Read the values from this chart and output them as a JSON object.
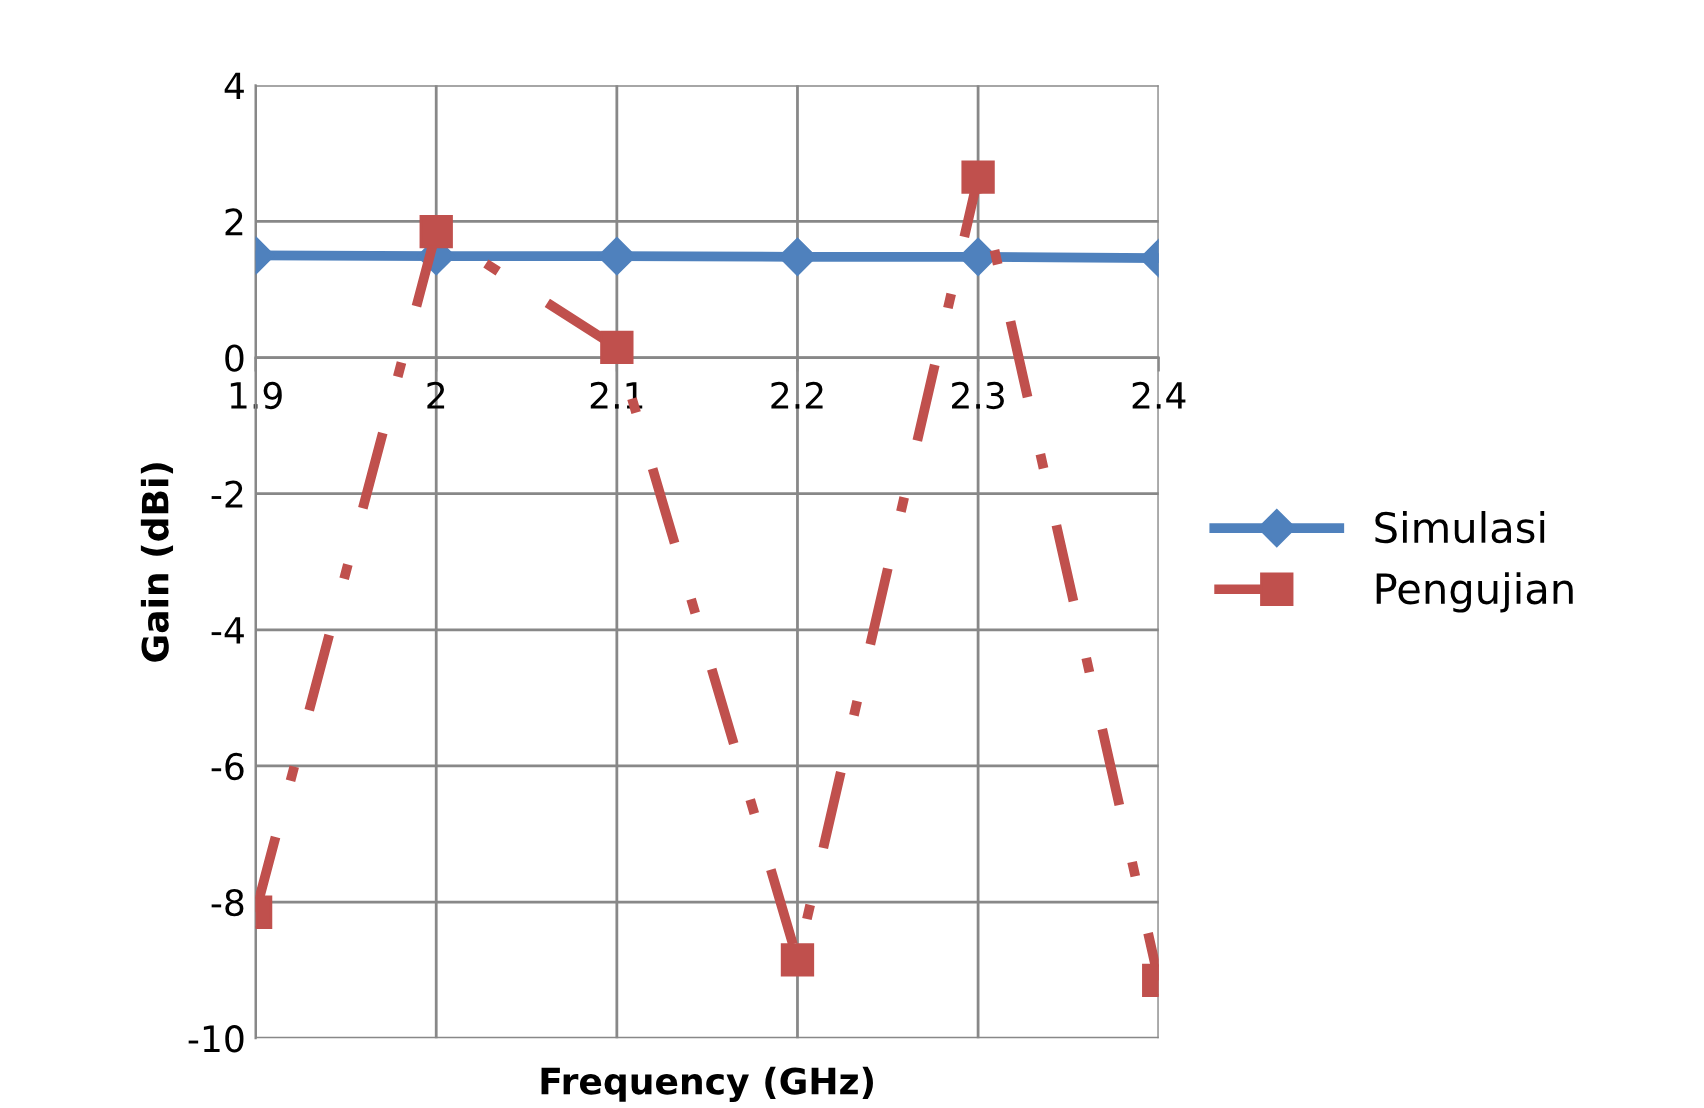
{
  "chart_data": {
    "type": "line",
    "xlabel": "Frequency (GHz)",
    "ylabel": "Gain (dBi)",
    "x": [
      1.9,
      2.0,
      2.1,
      2.2,
      2.3,
      2.4
    ],
    "xlim": [
      1.9,
      2.4
    ],
    "xticks": [
      {
        "value": 1.9,
        "label": "1.9"
      },
      {
        "value": 2.0,
        "label": "2"
      },
      {
        "value": 2.1,
        "label": "2.1"
      },
      {
        "value": 2.2,
        "label": "2.2"
      },
      {
        "value": 2.3,
        "label": "2.3"
      },
      {
        "value": 2.4,
        "label": "2.4"
      }
    ],
    "ylim": [
      -10,
      4
    ],
    "yticks": [
      -10,
      -8,
      -6,
      -4,
      -2,
      0,
      2,
      4
    ],
    "grid": true,
    "legend": "right",
    "series": [
      {
        "name": "Simulasi",
        "color": "#4f81bd",
        "marker": "diamond",
        "line_style": "solid",
        "values": [
          1.5,
          1.49,
          1.49,
          1.48,
          1.48,
          1.46
        ]
      },
      {
        "name": "Pengujian",
        "color": "#c0504d",
        "marker": "square",
        "line_style": "dashdot",
        "values": [
          -8.15,
          1.85,
          0.15,
          -8.85,
          2.65,
          -9.15
        ]
      }
    ]
  }
}
